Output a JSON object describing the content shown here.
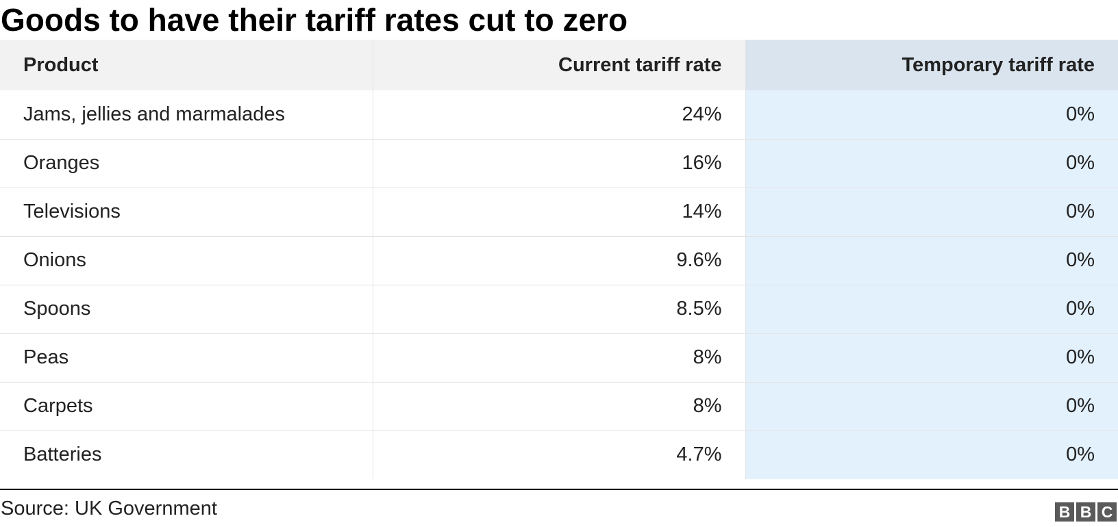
{
  "title": "Goods to have their tariff rates cut to zero",
  "source": "Source: UK Government",
  "logo": {
    "letters": [
      "B",
      "B",
      "C"
    ],
    "name": "BBC"
  },
  "colors": {
    "header_bg": "#f2f2f2",
    "highlight_header_bg": "#dae4ee",
    "highlight_cell_bg": "#e3f1fd",
    "logo_block": "#5a5a5a"
  },
  "chart_data": {
    "type": "table",
    "title": "Goods to have their tariff rates cut to zero",
    "columns": [
      "Product",
      "Current tariff rate",
      "Temporary tariff rate"
    ],
    "rows": [
      [
        "Jams, jellies and marmalades",
        "24%",
        "0%"
      ],
      [
        "Oranges",
        "16%",
        "0%"
      ],
      [
        "Televisions",
        "14%",
        "0%"
      ],
      [
        "Onions",
        "9.6%",
        "0%"
      ],
      [
        "Spoons",
        "8.5%",
        "0%"
      ],
      [
        "Peas",
        "8%",
        "0%"
      ],
      [
        "Carpets",
        "8%",
        "0%"
      ],
      [
        "Batteries",
        "4.7%",
        "0%"
      ]
    ]
  }
}
